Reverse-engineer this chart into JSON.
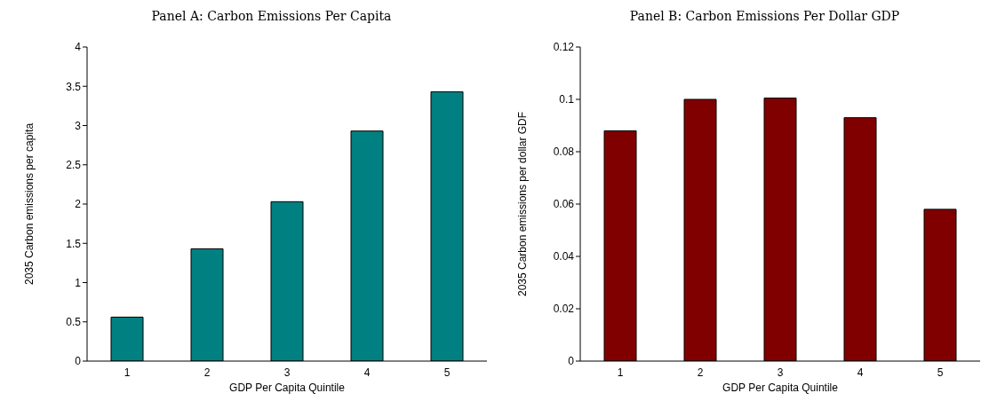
{
  "chart_data": [
    {
      "type": "bar",
      "title": "Panel A: Carbon Emissions Per Capita",
      "xlabel": "GDP Per Capita Quintile",
      "ylabel": "2035 Carbon emissions per capita",
      "categories": [
        "1",
        "2",
        "3",
        "4",
        "5"
      ],
      "values": [
        0.56,
        1.43,
        2.03,
        2.93,
        3.43
      ],
      "color": "#008080",
      "ylim": [
        0,
        4
      ],
      "yticks": [
        0,
        0.5,
        1,
        1.5,
        2,
        2.5,
        3,
        3.5,
        4
      ],
      "grid": false,
      "legend": false
    },
    {
      "type": "bar",
      "title": "Panel B: Carbon Emissions Per Dollar GDP",
      "xlabel": "GDP Per Capita Quintile",
      "ylabel": "2035 Carbon emissions per dollar GDF",
      "categories": [
        "1",
        "2",
        "3",
        "4",
        "5"
      ],
      "values": [
        0.088,
        0.1,
        0.1005,
        0.093,
        0.058
      ],
      "color": "#800000",
      "ylim": [
        0,
        0.12
      ],
      "yticks": [
        0,
        0.02,
        0.04,
        0.06,
        0.08,
        0.1,
        0.12
      ],
      "grid": false,
      "legend": false
    }
  ]
}
